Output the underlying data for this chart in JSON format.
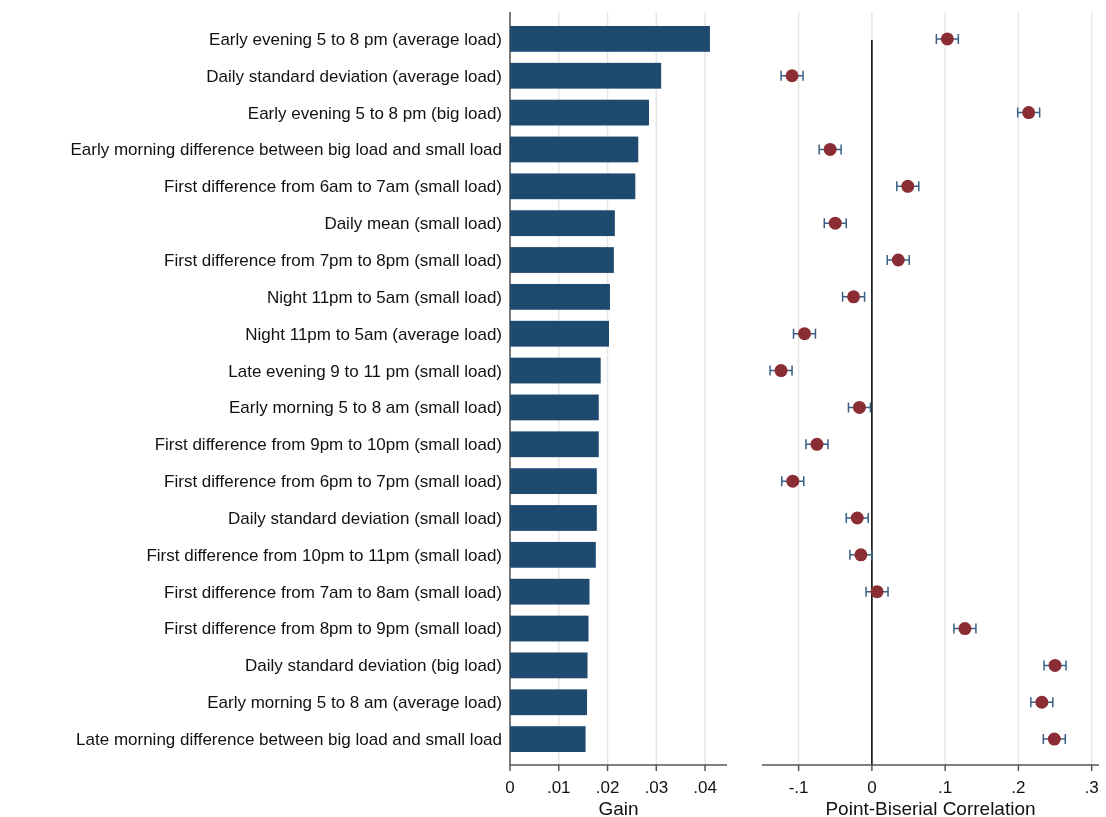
{
  "chart_data": [
    {
      "type": "bar",
      "orientation": "horizontal",
      "xlabel": "Gain",
      "categories": [
        "Early evening 5 to 8 pm (average load)",
        "Daily standard deviation (average load)",
        "Early evening 5 to 8 pm (big load)",
        "Early morning difference between big load and small load",
        "First difference from 6am to 7am (small load)",
        "Daily mean (small load)",
        "First difference from 7pm to 8pm (small load)",
        "Night 11pm to 5am (small load)",
        "Night 11pm to 5am (average load)",
        "Late evening 9 to 11 pm (small load)",
        "Early morning 5 to 8 am (small load)",
        "First difference from 9pm to 10pm (small load)",
        "First difference from 6pm to 7pm (small load)",
        "Daily standard deviation (small load)",
        "First difference from 10pm to 11pm (small load)",
        "First difference from 7am to 8am (small load)",
        "First difference from 8pm to 9pm (small load)",
        "Daily standard deviation (big load)",
        "Early morning 5 to 8 am (average load)",
        "Late morning difference between big load and small load"
      ],
      "values": [
        0.041,
        0.031,
        0.0285,
        0.0263,
        0.0257,
        0.0215,
        0.0213,
        0.0205,
        0.0203,
        0.0186,
        0.0182,
        0.0182,
        0.0178,
        0.0178,
        0.0176,
        0.0163,
        0.0161,
        0.0159,
        0.0158,
        0.0155
      ],
      "color": "#1f4a70",
      "xlim": [
        0,
        0.0445
      ],
      "xticks": [
        0,
        {
          "value": 0.01,
          "label": ".01"
        },
        {
          "value": 0.02,
          "label": ".02"
        },
        {
          "value": 0.03,
          "label": ".03"
        },
        {
          "value": 0.04,
          "label": ".04"
        }
      ],
      "grid": "x"
    },
    {
      "type": "scatter",
      "orientation": "horizontal",
      "xlabel": "Point-Biserial Correlation",
      "tick_labels": "x",
      "categories": [
        null,
        null,
        null,
        null,
        null,
        null,
        null,
        null,
        null,
        null,
        null,
        null,
        null,
        null,
        null,
        null,
        null,
        null,
        null,
        null
      ],
      "values": [
        0.103,
        -0.109,
        0.214,
        -0.057,
        0.049,
        -0.05,
        0.036,
        -0.025,
        -0.092,
        -0.124,
        -0.017,
        -0.075,
        -0.108,
        -0.02,
        -0.015,
        0.007,
        0.127,
        0.25,
        0.232,
        0.249
      ],
      "errors": [
        0.015,
        0.015,
        0.015,
        0.015,
        0.015,
        0.015,
        0.015,
        0.015,
        0.015,
        0.015,
        0.015,
        0.015,
        0.015,
        0.015,
        0.015,
        0.015,
        0.015,
        0.015,
        0.015,
        0.015
      ],
      "color": "#8b2d35",
      "marker": "circle",
      "xlim": [
        -0.15,
        0.31
      ],
      "xticks": [
        {
          "value": -0.1,
          "label": "-.1"
        },
        0,
        {
          "value": 0.1,
          "label": ".1"
        },
        {
          "value": 0.2,
          "label": ".2"
        },
        {
          "value": 0.3,
          "label": ".3"
        }
      ],
      "grid": "x",
      "ref_lines": [
        {
          "axis": "x",
          "value": 0,
          "color": "#000000"
        }
      ]
    }
  ]
}
